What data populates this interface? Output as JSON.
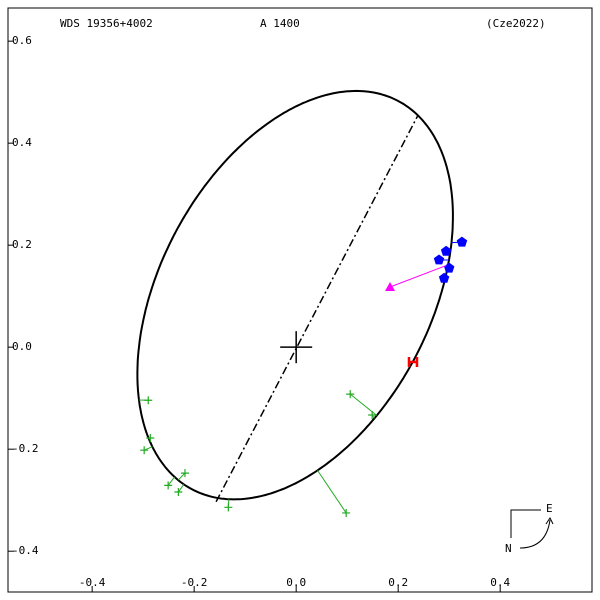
{
  "chart_data": {
    "type": "orbit",
    "title": "WDS 19356+4002",
    "subtitle": "A  1400",
    "reference": "(Cze2022)",
    "xlim": [
      -0.565,
      0.58
    ],
    "ylim": [
      -0.48,
      0.665
    ],
    "xticks": [
      -0.4,
      -0.2,
      {
        "value": 0,
        "label": "0.0"
      },
      0.2,
      0.4
    ],
    "yticks": [
      0.6,
      0.4,
      0.2,
      {
        "value": 0,
        "label": "0.0"
      },
      -0.2,
      -0.4
    ],
    "orbit": {
      "center": [
        -0.002,
        0.102
      ],
      "semi_major": 0.431,
      "semi_minor": 0.265,
      "angle": 62,
      "color": "#000000"
    },
    "line_of_apsides": {
      "x": [
        -0.157,
        0.239
      ],
      "y": [
        -0.303,
        0.455
      ]
    },
    "series": [
      {
        "marker": "cross",
        "color": "#22aa22",
        "x": [
          -0.29,
          -0.298,
          -0.286,
          -0.251,
          -0.231,
          -0.218,
          -0.133,
          0.106,
          0.149,
          0.098
        ],
        "y": [
          -0.104,
          -0.202,
          -0.178,
          -0.271,
          -0.284,
          -0.247,
          -0.314,
          -0.092,
          -0.133,
          -0.325
        ]
      },
      {
        "marker": "pentagon",
        "color": "#0000ff",
        "x": [
          0.325,
          0.294,
          0.28,
          0.3,
          0.29
        ],
        "y": [
          0.206,
          0.188,
          0.171,
          0.155,
          0.135
        ]
      },
      {
        "marker": "triangle",
        "color": "#ff00ff",
        "x": [
          0.184
        ],
        "y": [
          0.118
        ],
        "from": [
          0.294,
          0.16
        ]
      },
      {
        "marker": "H",
        "color": "#ff0000",
        "x": [
          0.229
        ],
        "y": [
          -0.029
        ]
      }
    ],
    "compass": {
      "east": "E",
      "north": "N"
    }
  }
}
